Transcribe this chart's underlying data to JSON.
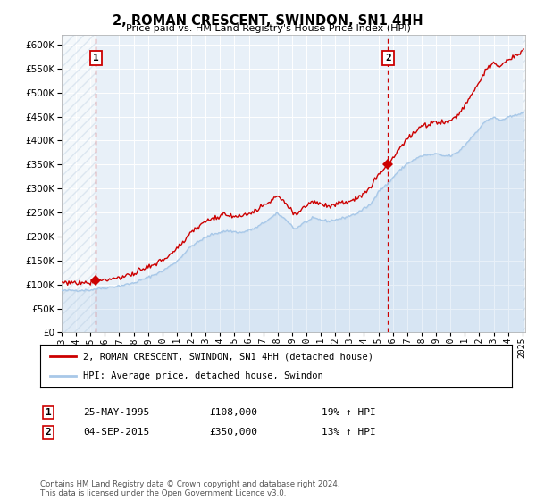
{
  "title": "2, ROMAN CRESCENT, SWINDON, SN1 4HH",
  "subtitle": "Price paid vs. HM Land Registry's House Price Index (HPI)",
  "sale1_date": "25-MAY-1995",
  "sale1_price": 108000,
  "sale1_hpi_pct": "19% ↑ HPI",
  "sale2_date": "04-SEP-2015",
  "sale2_price": 350000,
  "sale2_hpi_pct": "13% ↑ HPI",
  "legend_line1": "2, ROMAN CRESCENT, SWINDON, SN1 4HH (detached house)",
  "legend_line2": "HPI: Average price, detached house, Swindon",
  "footnote": "Contains HM Land Registry data © Crown copyright and database right 2024.\nThis data is licensed under the Open Government Licence v3.0.",
  "hpi_color": "#a8c8e8",
  "property_color": "#cc0000",
  "marker_color": "#cc0000",
  "dashed_line_color": "#cc0000",
  "background_color": "#e8f0f8",
  "ylim": [
    0,
    620000
  ],
  "yticks": [
    0,
    50000,
    100000,
    150000,
    200000,
    250000,
    300000,
    350000,
    400000,
    450000,
    500000,
    550000,
    600000
  ],
  "sale1_year": 1995.38,
  "sale2_year": 2015.67,
  "xmin": 1993.0,
  "xmax": 2025.2
}
